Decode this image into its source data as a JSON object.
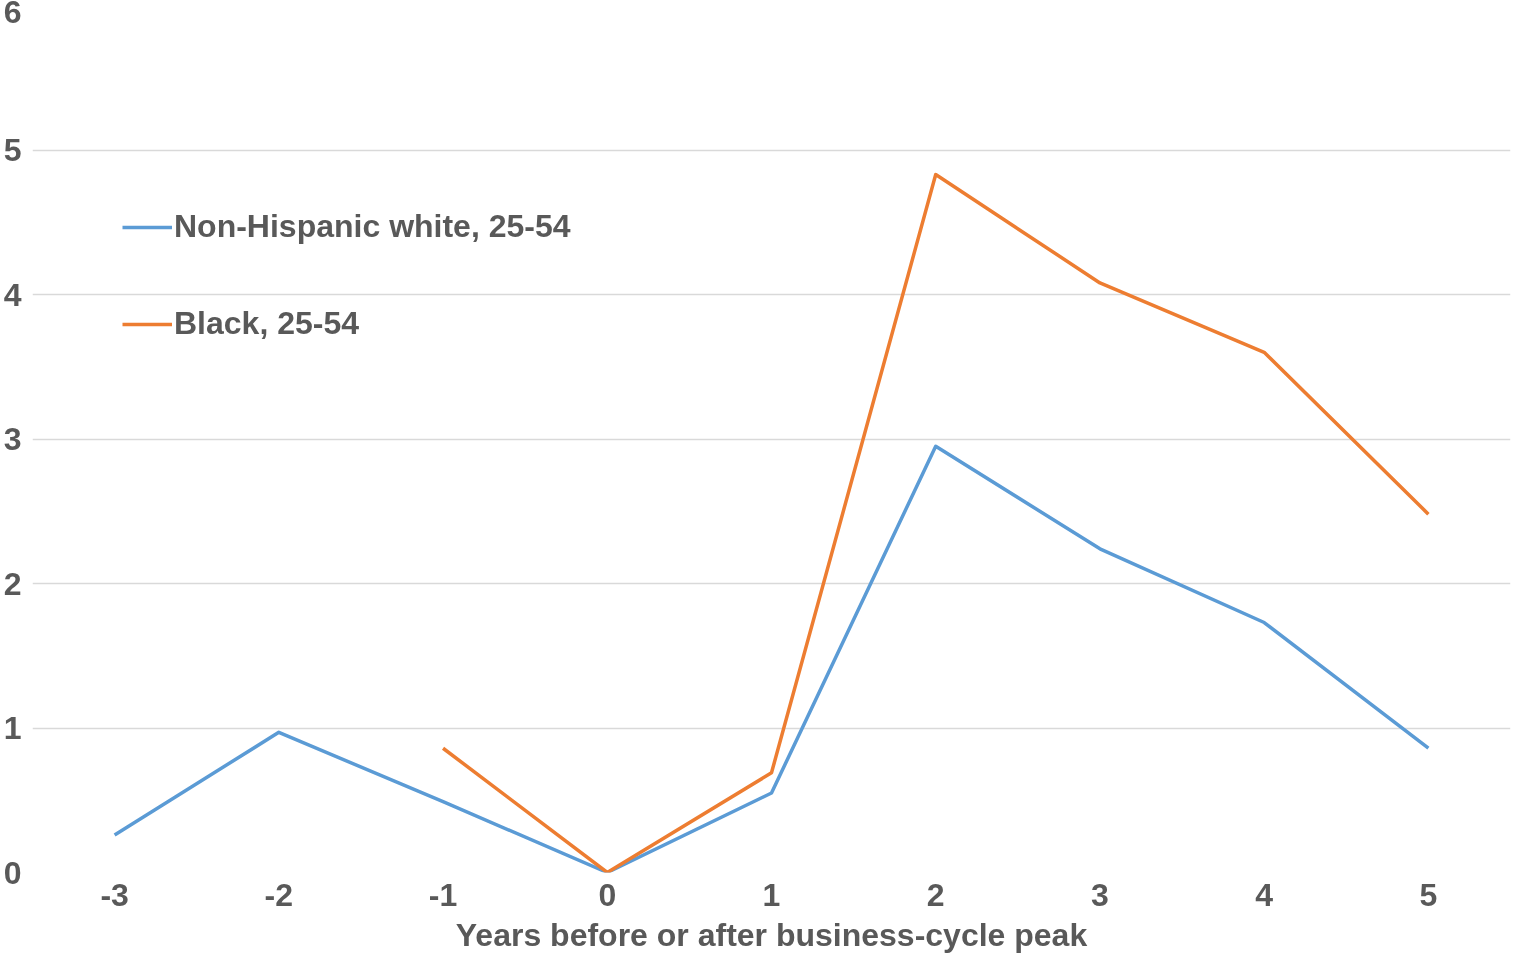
{
  "chart_data": {
    "type": "line",
    "xlabel": "Years before or after business-cycle peak",
    "categories": [
      "-3",
      "-2",
      "-1",
      "0",
      "1",
      "2",
      "3",
      "4",
      "5"
    ],
    "series": [
      {
        "name": "Non-Hispanic white, 25-54",
        "color": "#5b9bd5",
        "values": [
          0.26,
          0.97,
          0.49,
          0,
          0.55,
          2.95,
          2.24,
          1.73,
          0.86
        ]
      },
      {
        "name": "Black, 25-54",
        "color": "#ed7d31",
        "values": [
          null,
          null,
          0.86,
          0,
          0.69,
          4.83,
          4.08,
          3.6,
          2.48
        ]
      }
    ],
    "ylim": [
      0,
      6
    ],
    "yticks": [
      0,
      1,
      2,
      3,
      4,
      5,
      6
    ],
    "grid": "y",
    "legend": "top left",
    "marker": "none",
    "line_style": "solid"
  }
}
